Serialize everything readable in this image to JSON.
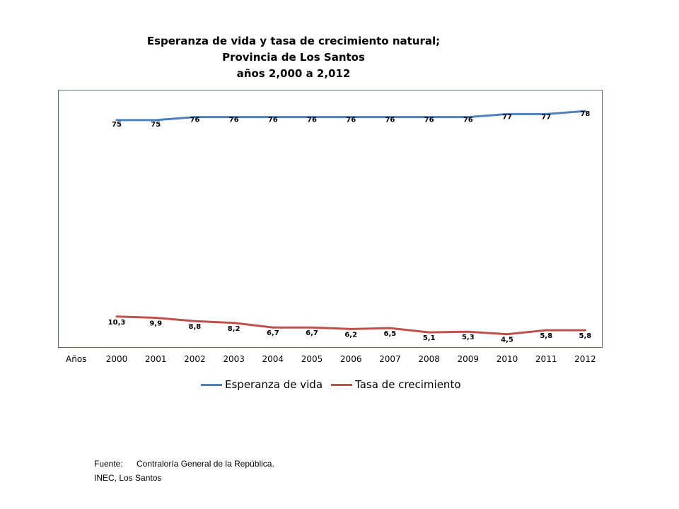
{
  "chart_data": {
    "type": "line",
    "title": "Esperanza de vida y  tasa de crecimiento natural;",
    "subtitle": [
      "Provincia de Los Santos",
      "años 2,000 a 2,012"
    ],
    "xlabel": "Años",
    "ylabel": "",
    "categories": [
      "2000",
      "2001",
      "2002",
      "2003",
      "2004",
      "2005",
      "2006",
      "2007",
      "2008",
      "2009",
      "2010",
      "2011",
      "2012"
    ],
    "ylim": [
      0,
      85
    ],
    "grid": false,
    "legend_position": "bottom",
    "series": [
      {
        "name": "Esperanza de vida",
        "color": "#4f81bd",
        "values": [
          75,
          75,
          76,
          76,
          76,
          76,
          76,
          76,
          76,
          76,
          77,
          77,
          78
        ],
        "labels": [
          "75",
          "75",
          "76",
          "76",
          "76",
          "76",
          "76",
          "76",
          "76",
          "76",
          "77",
          "77",
          "78"
        ]
      },
      {
        "name": "Tasa de crecimiento",
        "color": "#c0504d",
        "values": [
          10.3,
          9.9,
          8.8,
          8.2,
          6.7,
          6.7,
          6.2,
          6.5,
          5.1,
          5.3,
          4.5,
          5.8,
          5.8
        ],
        "labels": [
          "10,3",
          "9,9",
          "8,8",
          "8,2",
          "6,7",
          "6,7",
          "6,2",
          "6,5",
          "5,1",
          "5,3",
          "4,5",
          "5,8",
          "5,8"
        ]
      }
    ]
  },
  "source": {
    "label": "Fuente:",
    "line1": "Contraloría General de la República.",
    "line2": "INEC, Los Santos"
  }
}
